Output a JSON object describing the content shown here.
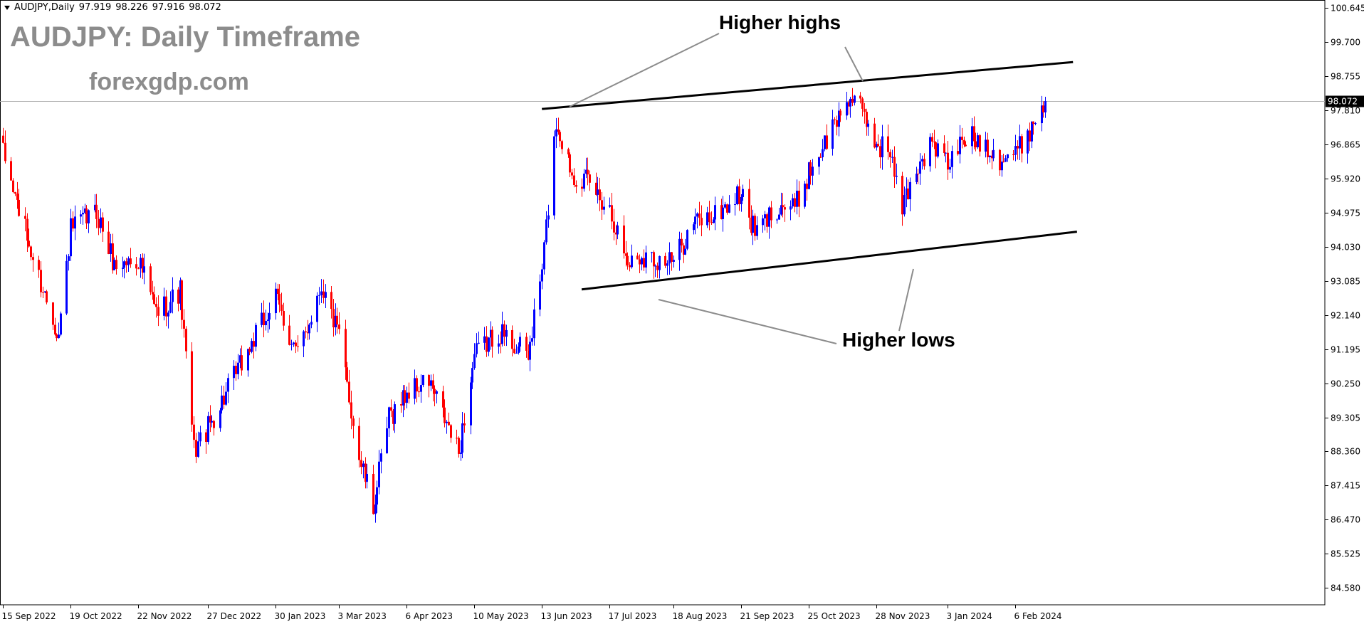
{
  "header": {
    "symbol": "AUDJPY,Daily",
    "open": "97.919",
    "high": "98.226",
    "low": "97.916",
    "close": "98.072"
  },
  "overlay": {
    "title": "AUDJPY: Daily Timeframe",
    "website": "forexgdp.com"
  },
  "annotations": {
    "higher_highs": "Higher highs",
    "higher_lows": "Higher lows"
  },
  "colors": {
    "bull": "#0000ff",
    "bear": "#ff0000",
    "grid": "#000000",
    "text_gray": "#8c8c8c"
  },
  "chart_data": {
    "type": "candlestick",
    "title": "",
    "xlabel": "",
    "ylabel": "",
    "grid": false,
    "ylim": [
      84.11,
      100.87
    ],
    "y_ticks": [
      "100.645",
      "99.700",
      "98.755",
      "97.810",
      "96.865",
      "95.920",
      "94.975",
      "94.030",
      "93.085",
      "92.140",
      "91.195",
      "90.250",
      "89.305",
      "88.360",
      "87.415",
      "86.470",
      "85.525",
      "84.580"
    ],
    "x_ticks": [
      "15 Sep 2022",
      "19 Oct 2022",
      "22 Nov 2022",
      "27 Dec 2022",
      "30 Jan 2023",
      "3 Mar 2023",
      "6 Apr 2023",
      "10 May 2023",
      "13 Jun 2023",
      "17 Jul 2023",
      "18 Aug 2023",
      "21 Sep 2023",
      "25 Oct 2023",
      "28 Nov 2023",
      "3 Jan 2024",
      "6 Feb 2024"
    ],
    "current_price": "98.072",
    "close_path": [
      [
        "15 Sep 2022",
        96.6
      ],
      [
        "1 Oct 2022",
        93.5
      ],
      [
        "13 Oct 2022",
        91.6
      ],
      [
        "19 Oct 2022",
        94.5
      ],
      [
        "1 Nov 2022",
        95.0
      ],
      [
        "10 Nov 2022",
        93.5
      ],
      [
        "22 Nov 2022",
        93.7
      ],
      [
        "1 Dec 2022",
        92.2
      ],
      [
        "13 Dec 2022",
        92.8
      ],
      [
        "20 Dec 2022",
        88.4
      ],
      [
        "27 Dec 2022",
        89.0
      ],
      [
        "10 Jan 2023",
        90.5
      ],
      [
        "30 Jan 2023",
        92.6
      ],
      [
        "10 Feb 2023",
        91.0
      ],
      [
        "22 Feb 2023",
        93.0
      ],
      [
        "3 Mar 2023",
        91.5
      ],
      [
        "13 Mar 2023",
        88.2
      ],
      [
        "20 Mar 2023",
        86.8
      ],
      [
        "28 Mar 2023",
        89.3
      ],
      [
        "6 Apr 2023",
        90.0
      ],
      [
        "17 Apr 2023",
        90.3
      ],
      [
        "2 May 2023",
        88.3
      ],
      [
        "10 May 2023",
        91.0
      ],
      [
        "22 May 2023",
        91.7
      ],
      [
        "6 Jun 2023",
        91.0
      ],
      [
        "13 Jun 2023",
        93.4
      ],
      [
        "20 Jun 2023",
        97.5
      ],
      [
        "28 Jun 2023",
        96.1
      ],
      [
        "6 Jul 2023",
        95.8
      ],
      [
        "17 Jul 2023",
        95.1
      ],
      [
        "26 Jul 2023",
        93.6
      ],
      [
        "2 Aug 2023",
        93.8
      ],
      [
        "18 Aug 2023",
        93.6
      ],
      [
        "28 Aug 2023",
        94.7
      ],
      [
        "8 Sep 2023",
        94.9
      ],
      [
        "21 Sep 2023",
        95.5
      ],
      [
        "28 Sep 2023",
        94.4
      ],
      [
        "10 Oct 2023",
        95.2
      ],
      [
        "18 Oct 2023",
        95.1
      ],
      [
        "25 Oct 2023",
        96.1
      ],
      [
        "3 Nov 2023",
        97.0
      ],
      [
        "14 Nov 2023",
        98.2
      ],
      [
        "20 Nov 2023",
        97.8
      ],
      [
        "28 Nov 2023",
        96.9
      ],
      [
        "5 Dec 2023",
        96.7
      ],
      [
        "10 Dec 2023",
        95.0
      ],
      [
        "18 Dec 2023",
        96.2
      ],
      [
        "26 Dec 2023",
        96.9
      ],
      [
        "3 Jan 2024",
        96.3
      ],
      [
        "12 Jan 2024",
        97.1
      ],
      [
        "22 Jan 2024",
        96.9
      ],
      [
        "29 Jan 2024",
        96.5
      ],
      [
        "6 Feb 2024",
        96.6
      ],
      [
        "13 Feb 2024",
        97.3
      ],
      [
        "21 Feb 2024",
        98.07
      ]
    ],
    "trendlines": [
      {
        "name": "upper",
        "points": [
          [
            "13 Jun 2023",
            97.85
          ],
          [
            "6 Mar 2024",
            99.15
          ]
        ]
      },
      {
        "name": "lower",
        "points": [
          [
            "3 Jul 2023",
            92.85
          ],
          [
            "8 Mar 2024",
            94.45
          ]
        ]
      }
    ]
  }
}
